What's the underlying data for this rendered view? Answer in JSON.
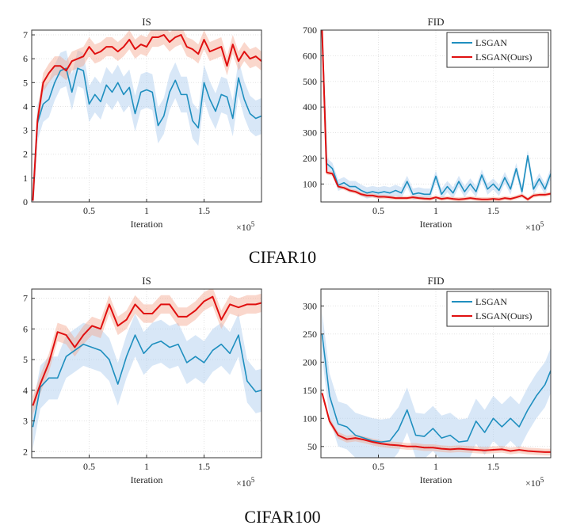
{
  "captions": {
    "top": "CIFAR10",
    "bottom": "CIFAR100"
  },
  "colors": {
    "lsgan": "#1f8fbf",
    "ours": "#e01010",
    "lsgan_band": "#a9c9ee",
    "ours_band": "#f3a78f"
  },
  "chart_data": [
    {
      "type": "line",
      "title": "IS",
      "xlabel": "Iteration",
      "x_multiplier": "×10^5",
      "xlim": [
        0,
        2
      ],
      "ylim": [
        0,
        7.2
      ],
      "xticks": [
        0.5,
        1,
        1.5
      ],
      "xtick_labels": [
        "0.5",
        "1",
        "1.5"
      ],
      "yticks": [
        0,
        1,
        2,
        3,
        4,
        5,
        6,
        7
      ],
      "ytick_labels": [
        "0",
        "1",
        "2",
        "3",
        "4",
        "5",
        "6",
        "7"
      ],
      "grid": true,
      "legend": "none",
      "series": [
        {
          "color_key": "lsgan",
          "x": [
            0.01,
            0.05,
            0.1,
            0.15,
            0.2,
            0.25,
            0.3,
            0.35,
            0.4,
            0.45,
            0.5,
            0.55,
            0.6,
            0.65,
            0.7,
            0.75,
            0.8,
            0.85,
            0.9,
            0.95,
            1.0,
            1.05,
            1.1,
            1.15,
            1.2,
            1.25,
            1.3,
            1.35,
            1.4,
            1.45,
            1.5,
            1.55,
            1.6,
            1.65,
            1.7,
            1.75,
            1.8,
            1.85,
            1.9,
            1.95,
            2.0
          ],
          "values": [
            0.05,
            3.3,
            4.1,
            4.3,
            5.0,
            5.5,
            5.6,
            4.6,
            5.6,
            5.5,
            4.1,
            4.5,
            4.2,
            4.9,
            4.6,
            5.0,
            4.5,
            4.8,
            3.7,
            4.6,
            4.7,
            4.6,
            3.2,
            3.6,
            4.6,
            5.1,
            4.5,
            4.5,
            3.4,
            3.1,
            5.0,
            4.3,
            3.8,
            4.5,
            4.4,
            3.5,
            5.2,
            4.3,
            3.7,
            3.5,
            3.6
          ],
          "band_half_width": 0.75
        },
        {
          "color_key": "ours",
          "x": [
            0.01,
            0.05,
            0.1,
            0.15,
            0.2,
            0.25,
            0.3,
            0.35,
            0.4,
            0.45,
            0.5,
            0.55,
            0.6,
            0.65,
            0.7,
            0.75,
            0.8,
            0.85,
            0.9,
            0.95,
            1.0,
            1.05,
            1.1,
            1.15,
            1.2,
            1.25,
            1.3,
            1.35,
            1.4,
            1.45,
            1.5,
            1.55,
            1.6,
            1.65,
            1.7,
            1.75,
            1.8,
            1.85,
            1.9,
            1.95,
            2.0
          ],
          "values": [
            0.05,
            3.4,
            5.0,
            5.4,
            5.7,
            5.7,
            5.5,
            5.9,
            6.0,
            6.1,
            6.5,
            6.2,
            6.3,
            6.5,
            6.5,
            6.3,
            6.5,
            6.8,
            6.4,
            6.6,
            6.5,
            6.9,
            6.9,
            7.0,
            6.7,
            6.9,
            7.0,
            6.5,
            6.4,
            6.2,
            6.8,
            6.3,
            6.4,
            6.5,
            5.7,
            6.6,
            5.9,
            6.3,
            6.0,
            6.1,
            5.9
          ],
          "band_half_width": 0.4
        }
      ]
    },
    {
      "type": "line",
      "title": "FID",
      "xlabel": "Iteration",
      "x_multiplier": "×10^5",
      "xlim": [
        0,
        2
      ],
      "ylim": [
        30,
        700
      ],
      "xticks": [
        0.5,
        1,
        1.5
      ],
      "xtick_labels": [
        "0.5",
        "1",
        "1.5"
      ],
      "yticks": [
        100,
        200,
        300,
        400,
        500,
        600,
        700
      ],
      "ytick_labels": [
        "100",
        "200",
        "300",
        "400",
        "500",
        "600",
        "700"
      ],
      "grid": true,
      "legend": "top-right",
      "series": [
        {
          "name": "LSGAN",
          "color_key": "lsgan",
          "x": [
            0.01,
            0.05,
            0.1,
            0.15,
            0.2,
            0.25,
            0.3,
            0.35,
            0.4,
            0.45,
            0.5,
            0.55,
            0.6,
            0.65,
            0.7,
            0.75,
            0.8,
            0.85,
            0.9,
            0.95,
            1.0,
            1.05,
            1.1,
            1.15,
            1.2,
            1.25,
            1.3,
            1.35,
            1.4,
            1.45,
            1.5,
            1.55,
            1.6,
            1.65,
            1.7,
            1.75,
            1.8,
            1.85,
            1.9,
            1.95,
            2.0
          ],
          "values": [
            700,
            180,
            160,
            95,
            105,
            90,
            90,
            75,
            65,
            70,
            65,
            70,
            65,
            75,
            65,
            110,
            60,
            65,
            60,
            60,
            130,
            60,
            90,
            65,
            110,
            70,
            100,
            70,
            135,
            80,
            100,
            75,
            125,
            80,
            160,
            70,
            210,
            80,
            120,
            80,
            140
          ],
          "band_half_width": 22
        },
        {
          "name": "LSGAN(Ours)",
          "color_key": "ours",
          "x": [
            0.01,
            0.05,
            0.1,
            0.15,
            0.2,
            0.25,
            0.3,
            0.35,
            0.4,
            0.45,
            0.5,
            0.55,
            0.6,
            0.65,
            0.7,
            0.75,
            0.8,
            0.85,
            0.9,
            0.95,
            1.0,
            1.05,
            1.1,
            1.15,
            1.2,
            1.25,
            1.3,
            1.35,
            1.4,
            1.45,
            1.5,
            1.55,
            1.6,
            1.65,
            1.7,
            1.75,
            1.8,
            1.85,
            1.9,
            1.95,
            2.0
          ],
          "values": [
            700,
            145,
            140,
            90,
            85,
            75,
            70,
            60,
            55,
            55,
            50,
            50,
            48,
            45,
            45,
            45,
            48,
            45,
            43,
            42,
            48,
            42,
            45,
            42,
            40,
            42,
            45,
            42,
            40,
            40,
            42,
            40,
            45,
            42,
            48,
            55,
            40,
            55,
            58,
            58,
            62
          ],
          "band_half_width": 8
        }
      ]
    },
    {
      "type": "line",
      "title": "IS",
      "xlabel": "Iteration",
      "x_multiplier": "×10^5",
      "xlim": [
        0,
        2
      ],
      "ylim": [
        1.8,
        7.3
      ],
      "xticks": [
        0.5,
        1,
        1.5
      ],
      "xtick_labels": [
        "0.5",
        "1",
        "1.5"
      ],
      "yticks": [
        2,
        3,
        4,
        5,
        6,
        7
      ],
      "ytick_labels": [
        "2",
        "3",
        "4",
        "5",
        "6",
        "7"
      ],
      "grid": true,
      "legend": "none",
      "series": [
        {
          "color_key": "lsgan",
          "x": [
            0.01,
            0.075,
            0.15,
            0.225,
            0.3,
            0.375,
            0.45,
            0.525,
            0.6,
            0.675,
            0.75,
            0.825,
            0.9,
            0.975,
            1.05,
            1.125,
            1.2,
            1.275,
            1.35,
            1.425,
            1.5,
            1.575,
            1.65,
            1.725,
            1.8,
            1.875,
            1.95,
            2.0
          ],
          "values": [
            2.8,
            4.1,
            4.4,
            4.4,
            5.1,
            5.3,
            5.5,
            5.4,
            5.3,
            5.0,
            4.2,
            5.1,
            5.8,
            5.2,
            5.5,
            5.6,
            5.4,
            5.5,
            4.9,
            5.1,
            4.9,
            5.3,
            5.5,
            5.2,
            5.8,
            4.3,
            3.95,
            4.0
          ],
          "band_half_width": 0.7
        },
        {
          "color_key": "ours",
          "x": [
            0.01,
            0.075,
            0.15,
            0.225,
            0.3,
            0.375,
            0.45,
            0.525,
            0.6,
            0.675,
            0.75,
            0.825,
            0.9,
            0.975,
            1.05,
            1.125,
            1.2,
            1.275,
            1.35,
            1.425,
            1.5,
            1.575,
            1.65,
            1.725,
            1.8,
            1.875,
            1.95,
            2.0
          ],
          "values": [
            3.5,
            4.2,
            4.9,
            5.9,
            5.8,
            5.4,
            5.8,
            6.1,
            6.0,
            6.8,
            6.1,
            6.3,
            6.8,
            6.5,
            6.5,
            6.8,
            6.8,
            6.4,
            6.4,
            6.6,
            6.9,
            7.05,
            6.3,
            6.8,
            6.7,
            6.8,
            6.8,
            6.85
          ],
          "band_half_width": 0.3
        }
      ]
    },
    {
      "type": "line",
      "title": "FID",
      "xlabel": "Iteration",
      "x_multiplier": "×10^5",
      "xlim": [
        0,
        2
      ],
      "ylim": [
        30,
        330
      ],
      "xticks": [
        0.5,
        1,
        1.5
      ],
      "xtick_labels": [
        "0.5",
        "1",
        "1.5"
      ],
      "yticks": [
        50,
        100,
        150,
        200,
        250,
        300
      ],
      "ytick_labels": [
        "50",
        "100",
        "150",
        "200",
        "250",
        "300"
      ],
      "grid": true,
      "legend": "top-right",
      "series": [
        {
          "name": "LSGAN",
          "color_key": "lsgan",
          "x": [
            0.01,
            0.075,
            0.15,
            0.225,
            0.3,
            0.375,
            0.45,
            0.525,
            0.6,
            0.675,
            0.75,
            0.825,
            0.9,
            0.975,
            1.05,
            1.125,
            1.2,
            1.275,
            1.35,
            1.425,
            1.5,
            1.575,
            1.65,
            1.725,
            1.8,
            1.875,
            1.95,
            2.0
          ],
          "values": [
            250,
            140,
            90,
            85,
            70,
            65,
            60,
            58,
            60,
            80,
            115,
            70,
            68,
            82,
            65,
            70,
            58,
            60,
            95,
            75,
            100,
            85,
            100,
            85,
            115,
            140,
            160,
            185
          ],
          "band_half_width": 40
        },
        {
          "name": "LSGAN(Ours)",
          "color_key": "ours",
          "x": [
            0.01,
            0.075,
            0.15,
            0.225,
            0.3,
            0.375,
            0.45,
            0.525,
            0.6,
            0.675,
            0.75,
            0.825,
            0.9,
            0.975,
            1.05,
            1.125,
            1.2,
            1.275,
            1.35,
            1.425,
            1.5,
            1.575,
            1.65,
            1.725,
            1.8,
            1.875,
            1.95,
            2.0
          ],
          "values": [
            145,
            95,
            70,
            63,
            65,
            62,
            58,
            55,
            53,
            52,
            50,
            50,
            48,
            48,
            46,
            45,
            46,
            45,
            44,
            43,
            44,
            45,
            42,
            44,
            42,
            41,
            40,
            40
          ],
          "band_half_width": 6
        }
      ]
    }
  ]
}
